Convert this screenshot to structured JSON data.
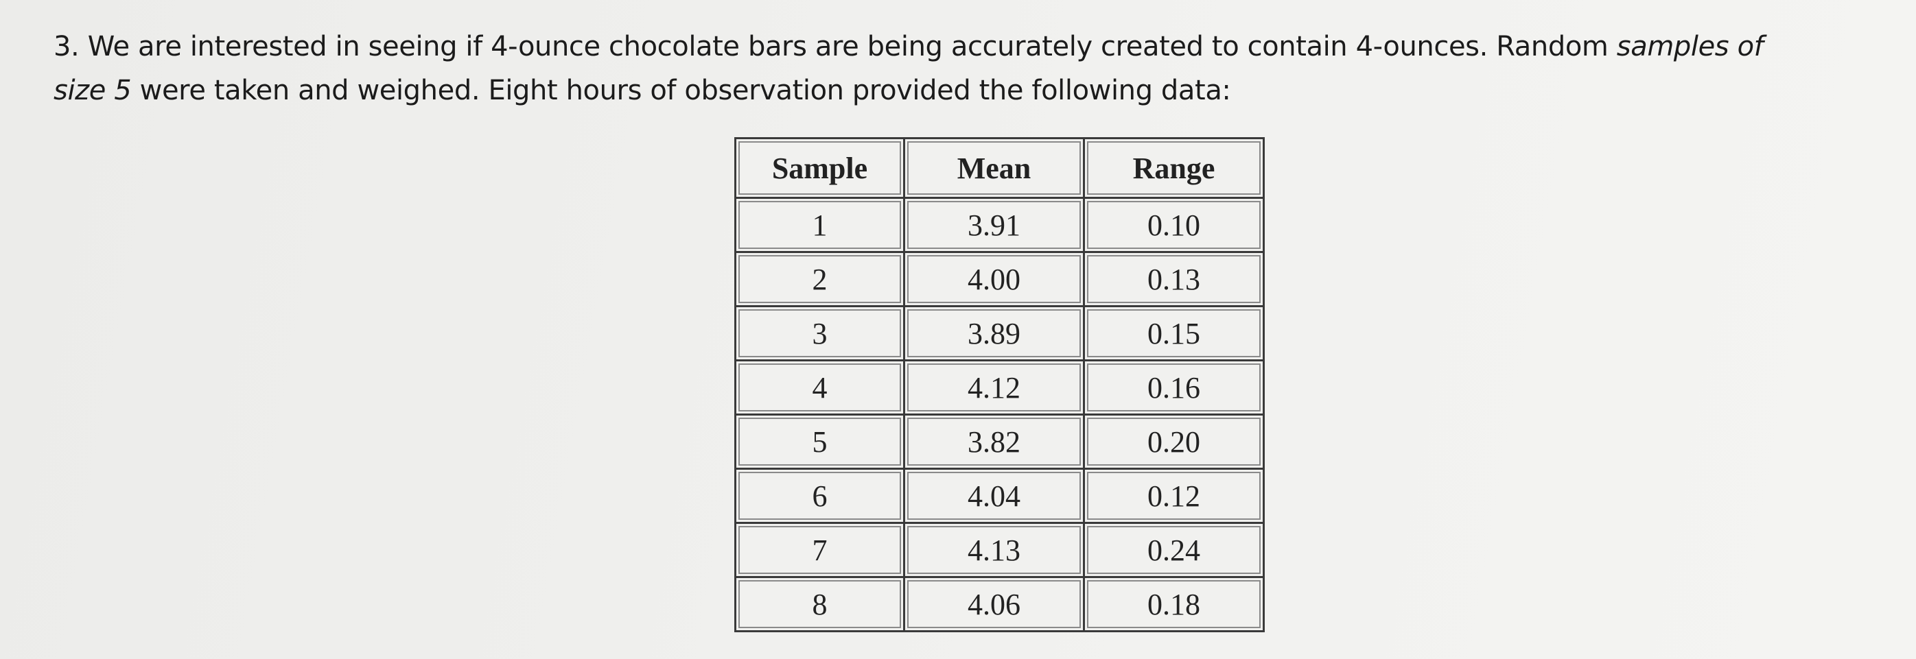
{
  "problem": {
    "number": "3.",
    "line1_text": "We are interested in seeing if 4-ounce chocolate bars are being accurately created to contain 4-ounces. Random",
    "line1_italic": "samples of",
    "line2_italic": "size 5",
    "line2_text": "were taken and weighed. Eight hours of observation provided the following data:"
  },
  "table": {
    "headers": {
      "sample": "Sample",
      "mean": "Mean",
      "range": "Range"
    },
    "rows": [
      {
        "sample": "1",
        "mean": "3.91",
        "range": "0.10"
      },
      {
        "sample": "2",
        "mean": "4.00",
        "range": "0.13"
      },
      {
        "sample": "3",
        "mean": "3.89",
        "range": "0.15"
      },
      {
        "sample": "4",
        "mean": "4.12",
        "range": "0.16"
      },
      {
        "sample": "5",
        "mean": "3.82",
        "range": "0.20"
      },
      {
        "sample": "6",
        "mean": "4.04",
        "range": "0.12"
      },
      {
        "sample": "7",
        "mean": "4.13",
        "range": "0.24"
      },
      {
        "sample": "8",
        "mean": "4.06",
        "range": "0.18"
      }
    ]
  }
}
